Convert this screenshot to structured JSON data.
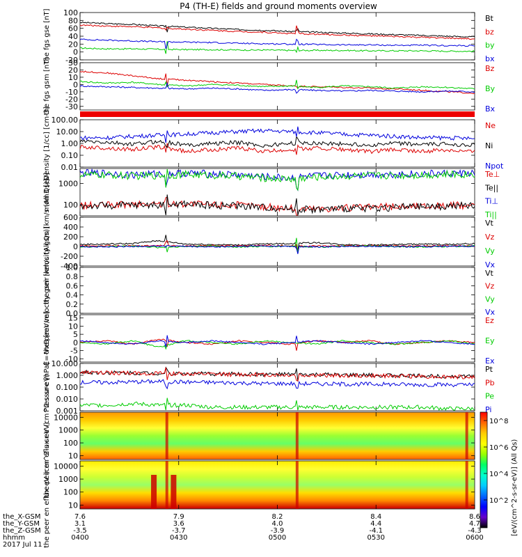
{
  "title": "P4 (TH-E) fields and ground moments overview",
  "date_label": "2017 Jul 11",
  "footer": {
    "rows": [
      {
        "label": "the_X-GSM",
        "values": [
          "7.6",
          "7.9",
          "8.2",
          "8.4",
          "8.6"
        ]
      },
      {
        "label": "the_Y-GSM",
        "values": [
          "3.1",
          "3.6",
          "4.0",
          "4.4",
          "4.7"
        ]
      },
      {
        "label": "the_Z-GSM",
        "values": [
          "-3.5",
          "-3.7",
          "-3.9",
          "-4.1",
          "-4.3"
        ]
      },
      {
        "label": "hhmm",
        "values": [
          "0400",
          "0430",
          "0500",
          "0530",
          "0600"
        ]
      }
    ]
  },
  "colorbar": {
    "label": "[eV/(cm^2-s-sr-eV)] (All Qs)",
    "ticks": [
      "10^8",
      "10^6",
      "10^4",
      "10^2"
    ],
    "colors": [
      "#ff0000",
      "#ff6600",
      "#ffcc00",
      "#ffff00",
      "#99ff00",
      "#00ff66",
      "#00ffcc",
      "#00ccff",
      "#0066ff",
      "#0000ff",
      "#6600cc",
      "#000000"
    ]
  },
  "colors": {
    "black": "#000000",
    "red": "#dd0000",
    "green": "#00cc00",
    "blue": "#0000dd"
  },
  "chart_data": [
    {
      "type": "line",
      "ylabel": "the fgs gse [nT]",
      "ticks": [
        "100",
        "80",
        "60",
        "40",
        "20",
        "0",
        "-20"
      ],
      "ylim": [
        -20,
        100
      ],
      "series": [
        {
          "name": "Bt",
          "color": "#000000",
          "values": [
            75,
            72,
            70,
            66,
            63,
            60,
            57,
            55,
            52,
            50,
            48,
            46,
            44,
            42,
            40,
            38
          ]
        },
        {
          "name": "bz",
          "color": "#dd0000",
          "values": [
            68,
            66,
            64,
            61,
            58,
            55,
            52,
            50,
            47,
            45,
            43,
            41,
            39,
            37,
            35,
            33
          ]
        },
        {
          "name": "by",
          "color": "#00cc00",
          "values": [
            10,
            8,
            8,
            7,
            6,
            6,
            5,
            5,
            4,
            4,
            4,
            3,
            3,
            3,
            2,
            2
          ]
        },
        {
          "name": "bx",
          "color": "#0000dd",
          "values": [
            32,
            30,
            28,
            26,
            25,
            24,
            22,
            21,
            20,
            19,
            18,
            18,
            17,
            17,
            16,
            16
          ]
        }
      ]
    },
    {
      "type": "line",
      "ylabel": "the fgs gsm [nT]",
      "ticks": [
        "30",
        "20",
        "10",
        "0",
        "-10",
        "-20",
        "-30"
      ],
      "ylim": [
        -35,
        30
      ],
      "series": [
        {
          "name": "Bz",
          "color": "#dd0000",
          "values": [
            18,
            16,
            12,
            8,
            6,
            4,
            2,
            0,
            -2,
            -3,
            -4,
            -5,
            -6,
            -8,
            -10,
            -12
          ]
        },
        {
          "name": "By",
          "color": "#00cc00",
          "values": [
            4,
            2,
            3,
            0,
            -2,
            0,
            -1,
            -3,
            -2,
            -4,
            -2,
            -3,
            -5,
            -3,
            -4,
            -6
          ]
        },
        {
          "name": "Bx",
          "color": "#0000dd",
          "values": [
            -2,
            -3,
            -4,
            -5,
            -6,
            -5,
            -6,
            -8,
            -7,
            -8,
            -9,
            -8,
            -9,
            -10,
            -9,
            -10
          ]
        }
      ]
    },
    {
      "type": "bar-strip",
      "ylabel": "",
      "ticks": [],
      "series": []
    },
    {
      "type": "line",
      "ylabel": "Density [1/cc] [cm-3]",
      "ticks": [
        "100.00",
        "10.00",
        "1.00",
        "0.10",
        "0.01"
      ],
      "log": true,
      "ylim": [
        0.01,
        100
      ],
      "series": [
        {
          "name": "Ne",
          "color": "#dd0000",
          "values": [
            0.5,
            0.4,
            0.3,
            0.5,
            0.2,
            0.3,
            0.4,
            0.2,
            0.3,
            0.4,
            0.3,
            0.2,
            0.3,
            0.2,
            0.3,
            0.2
          ]
        },
        {
          "name": "Ni",
          "color": "#000000",
          "values": [
            1.5,
            1.2,
            0.8,
            1.5,
            0.7,
            1.0,
            1.2,
            0.6,
            1.0,
            1.1,
            0.9,
            0.7,
            1.0,
            0.8,
            0.9,
            0.7
          ]
        },
        {
          "name": "Npot",
          "color": "#0000dd",
          "values": [
            3,
            3,
            4,
            5,
            6,
            8,
            10,
            12,
            10,
            8,
            6,
            5,
            4,
            3,
            3,
            2.5
          ]
        }
      ]
    },
    {
      "type": "line",
      "ylabel": "mom3 [eV]",
      "ticks": [
        "1000",
        "100"
      ],
      "log": true,
      "ylim": [
        30,
        5000
      ],
      "series": [
        {
          "name": "Te⊥",
          "color": "#dd0000",
          "values": [
            90,
            95,
            100,
            105,
            110,
            100,
            95,
            80,
            70,
            65,
            70,
            75,
            80,
            85,
            90,
            95
          ]
        },
        {
          "name": "Te||",
          "color": "#000000",
          "values": [
            85,
            90,
            95,
            100,
            105,
            95,
            90,
            75,
            65,
            60,
            65,
            70,
            75,
            80,
            85,
            90
          ]
        },
        {
          "name": "Ti⊥",
          "color": "#0000dd",
          "values": [
            3000,
            3000,
            2500,
            2800,
            3000,
            2800,
            2500,
            2000,
            1800,
            2200,
            2500,
            2600,
            2700,
            2800,
            2900,
            3000
          ]
        },
        {
          "name": "Ti||",
          "color": "#00cc00",
          "values": [
            2500,
            2500,
            2200,
            2400,
            2600,
            2400,
            2200,
            1800,
            1600,
            2000,
            2200,
            2300,
            2400,
            2500,
            2600,
            2700
          ]
        }
      ]
    },
    {
      "type": "line",
      "ylabel": "the peir velocity gsm [km/s (All Qs)]",
      "ticks": [
        "600",
        "400",
        "200",
        "0",
        "-200",
        "-400"
      ],
      "ylim": [
        -400,
        600
      ],
      "series": [
        {
          "name": "Vt",
          "color": "#000000",
          "values": [
            40,
            50,
            60,
            120,
            50,
            40,
            30,
            50,
            60,
            80,
            40,
            30,
            40,
            50,
            40,
            60
          ]
        },
        {
          "name": "Vz",
          "color": "#dd0000",
          "values": [
            10,
            15,
            10,
            20,
            10,
            15,
            10,
            20,
            15,
            10,
            10,
            15,
            10,
            10,
            15,
            10
          ]
        },
        {
          "name": "Vy",
          "color": "#00cc00",
          "values": [
            -10,
            0,
            10,
            -20,
            0,
            10,
            -10,
            0,
            10,
            -10,
            0,
            10,
            0,
            -10,
            0,
            10
          ]
        },
        {
          "name": "Vx",
          "color": "#0000dd",
          "values": [
            0,
            -10,
            0,
            10,
            0,
            -10,
            0,
            10,
            0,
            -10,
            0,
            5,
            0,
            -5,
            0,
            5
          ]
        }
      ]
    },
    {
      "type": "line",
      "ylabel": "the peer velocity gsm [km/s (All Qs)]",
      "ticks": [
        "1.0",
        "0.8",
        "0.6",
        "0.4",
        "0.2",
        "0.0"
      ],
      "ylim": [
        0,
        1
      ],
      "series": [
        {
          "name": "Vt",
          "color": "#000000",
          "values": []
        },
        {
          "name": "Vz",
          "color": "#dd0000",
          "values": []
        },
        {
          "name": "Vy",
          "color": "#00cc00",
          "values": []
        },
        {
          "name": "Vx",
          "color": "#0000dd",
          "values": []
        }
      ]
    },
    {
      "type": "line",
      "ylabel": "E=-VxB [mV/m]",
      "ticks": [
        "15",
        "10",
        "5",
        "0",
        "-5",
        "-10"
      ],
      "ylim": [
        -12,
        17
      ],
      "series": [
        {
          "name": "Ez",
          "color": "#dd0000",
          "values": [
            0,
            1,
            -1,
            2,
            0,
            -1,
            1,
            0,
            -1,
            1,
            0,
            1,
            -1,
            0,
            1,
            0
          ]
        },
        {
          "name": "Ey",
          "color": "#00cc00",
          "values": [
            0,
            -1,
            1,
            -3,
            1,
            0,
            -1,
            1,
            0,
            -1,
            1,
            0,
            -1,
            0,
            1,
            -1
          ]
        },
        {
          "name": "Ex",
          "color": "#0000dd",
          "values": [
            1,
            0,
            -1,
            1,
            0,
            1,
            0,
            -1,
            0,
            1,
            0,
            -1,
            0,
            1,
            0,
            -1
          ]
        }
      ]
    },
    {
      "type": "line",
      "ylabel": "Pressure [nPa]",
      "ticks": [
        "10.000",
        "1.000",
        "0.100",
        "0.010",
        "0.001"
      ],
      "log": true,
      "ylim": [
        0.001,
        10
      ],
      "series": [
        {
          "name": "Pt",
          "color": "#000000",
          "values": [
            1.8,
            1.7,
            1.6,
            1.5,
            1.4,
            1.3,
            1.25,
            1.2,
            1.15,
            1.1,
            1.05,
            1.0,
            0.95,
            0.9,
            0.85,
            0.8
          ]
        },
        {
          "name": "Pb",
          "color": "#dd0000",
          "values": [
            1.7,
            1.6,
            1.5,
            1.4,
            1.3,
            1.2,
            1.15,
            1.1,
            1.05,
            1.0,
            0.95,
            0.9,
            0.85,
            0.8,
            0.75,
            0.7
          ]
        },
        {
          "name": "Pe",
          "color": "#00cc00",
          "values": [
            0.003,
            0.003,
            0.004,
            0.003,
            0.003,
            0.002,
            0.002,
            0.002,
            0.002,
            0.002,
            0.002,
            0.002,
            0.002,
            0.002,
            0.0015,
            0.0015
          ]
        },
        {
          "name": "Pi",
          "color": "#0000dd",
          "values": [
            0.25,
            0.25,
            0.28,
            0.3,
            0.27,
            0.25,
            0.23,
            0.2,
            0.2,
            0.19,
            0.18,
            0.18,
            0.17,
            0.16,
            0.16,
            0.15
          ]
        }
      ]
    },
    {
      "type": "heatmap",
      "ylabel": "the peir en eflux eV (cm^2-s-sr-eV)",
      "ticks": [
        "10000",
        "1000",
        "100",
        "10"
      ],
      "log": true,
      "ylim": [
        5,
        25000
      ],
      "series": []
    },
    {
      "type": "heatmap",
      "ylabel": "the peer en eflux eV (cm^2-s-sr-eV)",
      "ticks": [
        "10000",
        "1000",
        "100",
        "10"
      ],
      "log": true,
      "ylim": [
        5,
        25000
      ],
      "series": []
    }
  ]
}
